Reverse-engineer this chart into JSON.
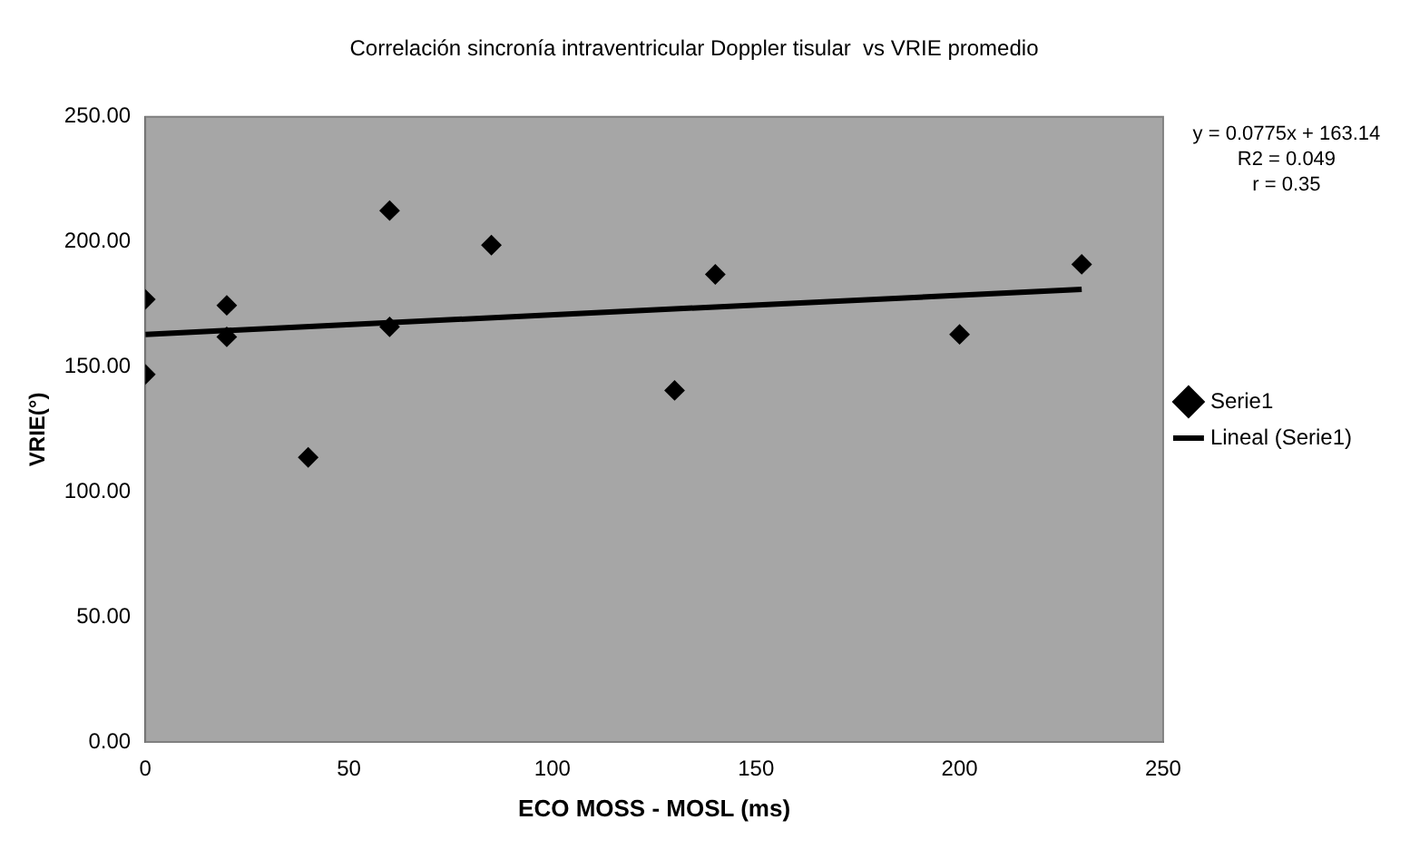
{
  "chart_data": {
    "type": "scatter",
    "title": "Correlación sincronía intraventricular Doppler tisular  vs VRIE promedio",
    "xlabel": "ECO MOSS - MOSL (ms)",
    "ylabel": "VRIE(°)",
    "x": [
      0,
      0,
      20,
      20,
      40,
      60,
      60,
      85,
      130,
      140,
      200,
      230
    ],
    "series": [
      {
        "name": "Serie1",
        "type": "scatter",
        "color": "#000000",
        "marker": "diamond",
        "values": [
          177,
          147,
          174.6,
          162,
          113.8,
          212.5,
          166,
          198.7,
          140.6,
          187,
          163,
          191
        ]
      },
      {
        "name": "Lineal (Serie1)",
        "type": "line",
        "color": "#000000",
        "marker": "none",
        "line_style": "solid",
        "x": [
          0,
          230
        ],
        "values": [
          163,
          181
        ]
      }
    ],
    "xlim": [
      0,
      250
    ],
    "xticks": [
      0,
      50,
      100,
      150,
      200,
      250
    ],
    "ylim": [
      0,
      250
    ],
    "yticks": [
      {
        "value": 0,
        "label": "0.00"
      },
      {
        "value": 50,
        "label": "50.00"
      },
      {
        "value": 100,
        "label": "100.00"
      },
      {
        "value": 150,
        "label": "150.00"
      },
      {
        "value": 200,
        "label": "200.00"
      },
      {
        "value": 250,
        "label": "250.00"
      }
    ],
    "grid": false,
    "legend": "right",
    "annotations": [
      "y = 0.0775x + 163.14",
      "R2 = 0.049",
      "r = 0.35"
    ]
  }
}
